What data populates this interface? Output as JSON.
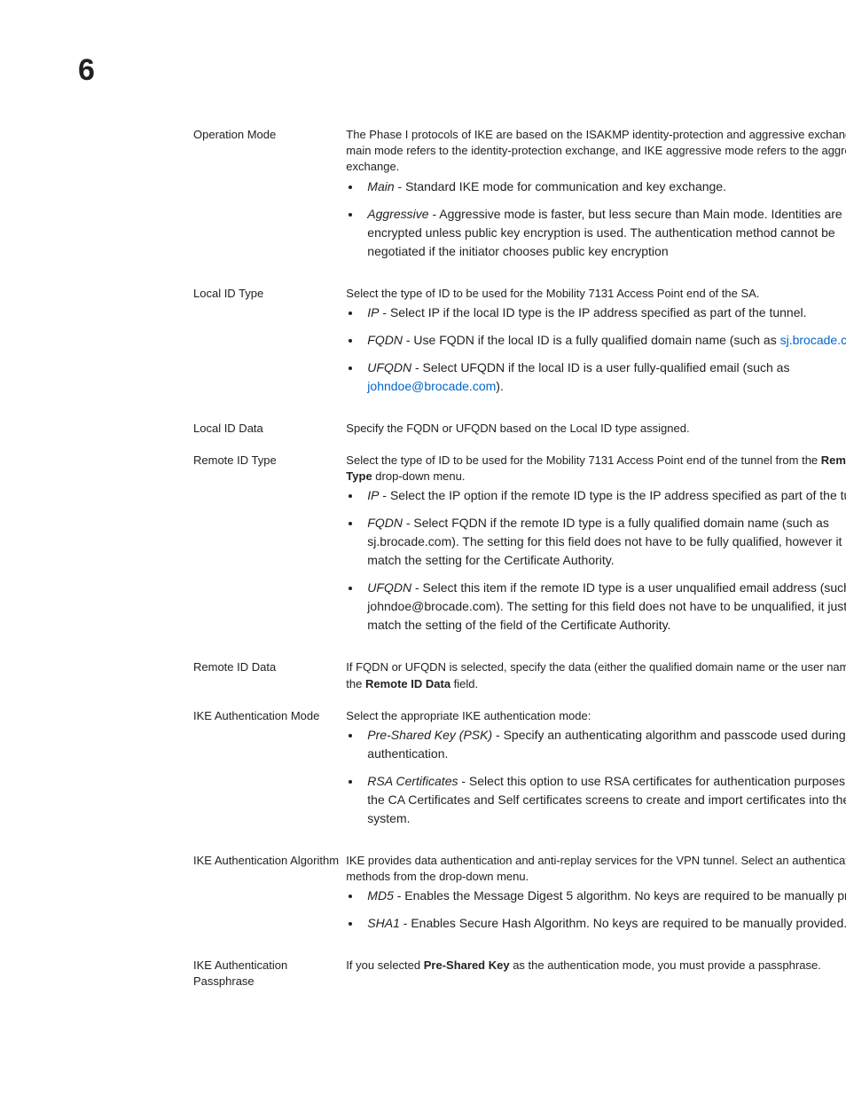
{
  "page": {
    "number": "6"
  },
  "rows": {
    "op_mode": {
      "label": "Operation Mode",
      "intro": "The Phase I protocols of IKE are based on the ISAKMP identity-protection and aggressive exchanges. IKE main mode refers to the identity-protection exchange, and IKE aggressive mode refers to the aggressive exchange.",
      "b1_term": "Main",
      "b1_rest": " - Standard IKE mode for communication and key exchange.",
      "b2_term": "Aggressive",
      "b2_rest": " - Aggressive mode is faster, but less secure than Main mode. Identities are not encrypted unless public key encryption is used. The authentication method cannot be negotiated if the initiator chooses public key encryption"
    },
    "local_id_type": {
      "label": "Local ID Type",
      "intro": "Select the type of ID to be used for the Mobility 7131 Access Point end of the SA.",
      "b1_term": "IP",
      "b1_rest": " - Select IP if the local ID type is the IP address specified as part of the tunnel.",
      "b2_term": "FQDN",
      "b2_pre": " - Use FQDN if the local ID is a fully qualified domain name (such as ",
      "b2_link": "sj.brocade.com",
      "b2_post": ").",
      "b3_term": "UFQDN",
      "b3_pre": " - Select UFQDN if the local ID is a user fully-qualified email (such as ",
      "b3_link": "johndoe@brocade.com",
      "b3_post": ")."
    },
    "local_id_data": {
      "label": "Local ID Data",
      "intro": "Specify the FQDN or UFQDN based on the Local ID type assigned."
    },
    "remote_id_type": {
      "label": "Remote ID Type",
      "intro_pre": "Select the type of ID to be used for the Mobility 7131 Access Point end of the tunnel from the ",
      "intro_bold": "Remote ID Type",
      "intro_post": " drop-down menu.",
      "b1_term": "IP",
      "b1_rest": " - Select the IP option if the remote ID type is the IP address specified as part of the tunnel.",
      "b2_term": "FQDN",
      "b2_rest": " - Select FQDN if the remote ID type is a fully qualified domain name (such as sj.brocade.com). The setting for this field does not have to be fully qualified, however it must match the setting for the Certificate Authority.",
      "b3_term": "UFQDN",
      "b3_rest": " - Select this item if the remote ID type is a user unqualified email address (such as johndoe@brocade.com). The setting for this field does not have to be unqualified, it just must match the setting of the field of the Certificate Authority."
    },
    "remote_id_data": {
      "label": "Remote ID Data",
      "intro_pre": "If FQDN or UFQDN is selected, specify the data (either the qualified domain name or the user name) in the ",
      "intro_bold": "Remote ID Data",
      "intro_post": " field."
    },
    "ike_auth_mode": {
      "label": "IKE Authentication Mode",
      "intro": "Select the appropriate IKE authentication mode:",
      "b1_term": "Pre-Shared Key (PSK)",
      "b1_rest": " - Specify an authenticating algorithm and passcode used during authentication.",
      "b2_term": "RSA Certificates",
      "b2_rest": " - Select this option to use RSA certificates for authentication purposes. See the CA Certificates and Self certificates screens to create and import certificates into the system."
    },
    "ike_auth_alg": {
      "label": "IKE Authentication Algorithm",
      "intro": "IKE provides data authentication and anti-replay services for the VPN tunnel. Select an authentication methods from the drop-down menu.",
      "b1_term": "MD5",
      "b1_rest": " - Enables the Message Digest 5 algorithm. No keys are required to be manually provided.",
      "b2_term": "SHA1",
      "b2_rest": " - Enables Secure Hash Algorithm. No keys are required to be manually provided."
    },
    "ike_auth_pass": {
      "label": "IKE Authentication Passphrase",
      "intro_pre": "If you selected ",
      "intro_bold": "Pre-Shared Key",
      "intro_post": " as the authentication mode, you must provide a passphrase."
    }
  }
}
